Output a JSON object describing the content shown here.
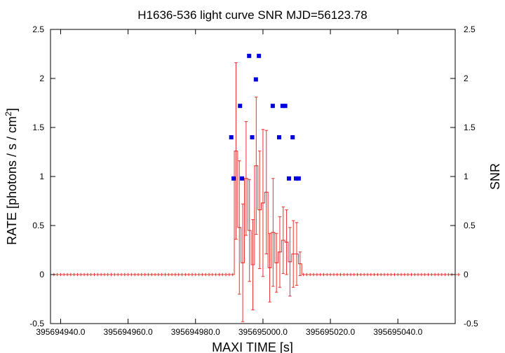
{
  "chart_data": {
    "type": "scatter",
    "title": "H1636-536 light curve  SNR MJD=56123.78",
    "xlabel": "MAXI TIME [s]",
    "ylabel_prefix": "RATE [photons / s / cm",
    "ylabel_sup": "2",
    "ylabel_suffix": "]",
    "y2label": "SNR",
    "xlim": [
      395694937.0,
      395695057.0
    ],
    "ylim": [
      -0.5,
      2.5
    ],
    "y2lim": [
      -0.5,
      2.5
    ],
    "xticks": [
      395694940,
      395694960,
      395694980,
      395695000,
      395695020,
      395695040
    ],
    "xtick_labels": [
      "395694940.0",
      "395694960.0",
      "395694980.0",
      "395695000.0",
      "395695020.0",
      "395695040.0"
    ],
    "yticks": [
      -0.5,
      0,
      0.5,
      1,
      1.5,
      2,
      2.5
    ],
    "ytick_labels": [
      "-0.5",
      "0",
      "0.5",
      "1",
      "1.5",
      "2",
      "2.5"
    ],
    "y2tick_labels": [
      "-0.5",
      "0",
      "0.5",
      "1",
      "1.5",
      "2",
      "2.5"
    ],
    "grid": false,
    "colors": {
      "rate": "#e8302e",
      "snr": "#0000dd"
    },
    "series": [
      {
        "style": "step-errorbar",
        "bin_width": 1,
        "x_start": 395694937.5,
        "values": [
          0,
          0,
          0,
          0,
          0,
          0,
          0,
          0,
          0,
          0,
          0,
          0,
          0,
          0,
          0,
          0,
          0,
          0,
          0,
          0,
          0,
          0,
          0,
          0,
          0,
          0,
          0,
          0,
          0,
          0,
          0,
          0,
          0,
          0,
          0,
          0,
          0,
          0,
          0,
          0,
          0,
          0,
          0,
          0,
          0,
          0,
          0,
          0,
          0,
          0,
          0,
          0,
          0,
          0,
          1.26,
          0.48,
          0.12,
          0.98,
          0.45,
          0.1,
          1.11,
          0.66,
          0.73,
          0.84,
          0.07,
          0.43,
          0.12,
          0.23,
          0.35,
          0.33,
          0.13,
          0.21,
          0.21,
          0.11,
          0,
          0,
          0,
          0,
          0,
          0,
          0,
          0,
          0,
          0,
          0,
          0,
          0,
          0,
          0,
          0,
          0,
          0,
          0,
          0,
          0,
          0,
          0,
          0,
          0,
          0,
          0,
          0,
          0,
          0,
          0,
          0,
          0,
          0,
          0,
          0,
          0,
          0,
          0,
          0,
          0,
          0,
          0,
          0,
          0,
          0,
          0
        ],
        "errors": [
          0,
          0,
          0,
          0,
          0,
          0,
          0,
          0,
          0,
          0,
          0,
          0,
          0,
          0,
          0,
          0,
          0,
          0,
          0,
          0,
          0,
          0,
          0,
          0,
          0,
          0,
          0,
          0,
          0,
          0,
          0,
          0,
          0,
          0,
          0,
          0,
          0,
          0,
          0,
          0,
          0,
          0,
          0,
          0,
          0,
          0,
          0,
          0,
          0,
          0,
          0,
          0,
          0,
          0,
          0.9,
          0.68,
          0.6,
          0.58,
          0.52,
          0.46,
          0.7,
          0.6,
          0.75,
          0.63,
          0.35,
          0.55,
          0.3,
          0.36,
          0.34,
          0.33,
          0.35,
          0.34,
          0.32,
          0.12,
          0,
          0,
          0,
          0,
          0,
          0,
          0,
          0,
          0,
          0,
          0,
          0,
          0,
          0,
          0,
          0,
          0,
          0,
          0,
          0,
          0,
          0,
          0,
          0,
          0,
          0,
          0,
          0,
          0,
          0,
          0,
          0,
          0,
          0,
          0,
          0,
          0,
          0,
          0,
          0,
          0,
          0,
          0,
          0,
          0,
          0,
          0
        ]
      },
      {
        "style": "points",
        "axis": "y2",
        "x": [
          395694990.6,
          395694991.3,
          395694993.2,
          395694993.8,
          395694995.9,
          395694996.8,
          395694997.9,
          395694998.8,
          395695002.9,
          395695004.8,
          395695005.8,
          395695006.6,
          395695007.7,
          395695008.8,
          395695009.8,
          395695010.6
        ],
        "y": [
          1.4,
          0.98,
          1.72,
          0.98,
          2.23,
          1.4,
          1.99,
          2.23,
          1.72,
          1.4,
          1.72,
          1.72,
          0.98,
          1.4,
          0.98,
          0.98
        ]
      }
    ]
  }
}
